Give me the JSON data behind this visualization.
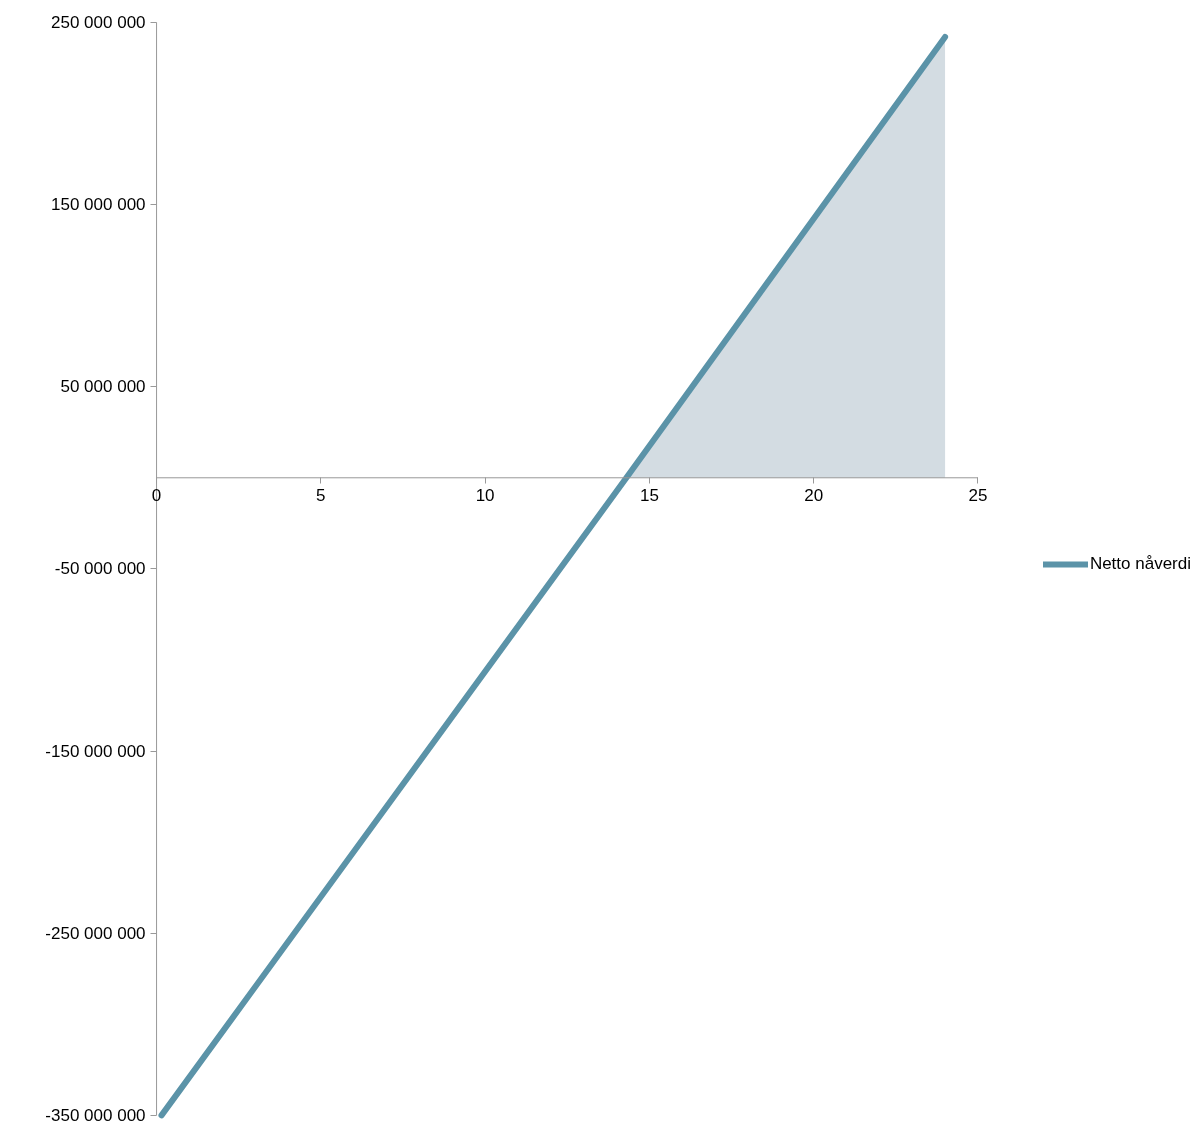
{
  "chart_data": {
    "type": "line",
    "x": [
      0.15,
      14.3,
      24
    ],
    "series": [
      {
        "name": "Netto nåverdi",
        "color": "#5b93a8",
        "values": [
          -350000000,
          0,
          242000000
        ]
      },
      {
        "type": "area",
        "color": "#d3dce2",
        "x": [
          14.3,
          24
        ],
        "values": [
          0,
          242000000
        ]
      }
    ],
    "xlim": [
      0,
      25
    ],
    "xticks": [
      0,
      5,
      10,
      15,
      20,
      25
    ],
    "ylim": [
      -350000000,
      250000000
    ],
    "yticks": [
      {
        "value": 250000000,
        "label": "250 000 000"
      },
      {
        "value": 150000000,
        "label": "150 000 000"
      },
      {
        "value": 50000000,
        "label": "50 000 000"
      },
      {
        "value": -50000000,
        "label": "-50 000 000"
      },
      {
        "value": -150000000,
        "label": "-150 000 000"
      },
      {
        "value": -250000000,
        "label": "-250 000 000"
      },
      {
        "value": -350000000,
        "label": "-350 000 000"
      }
    ],
    "grid": false,
    "legend": "right"
  }
}
